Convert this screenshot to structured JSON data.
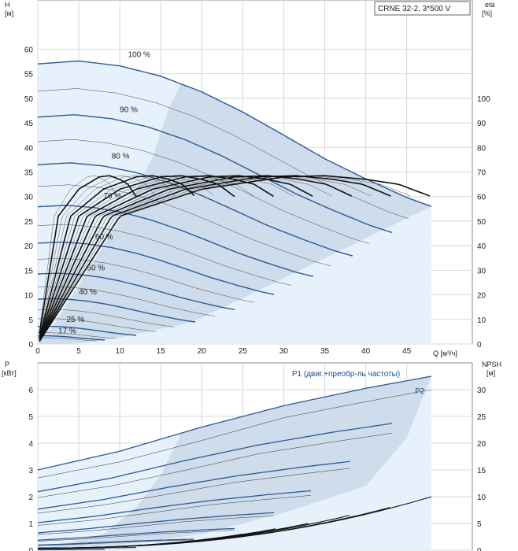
{
  "chart_data": [
    {
      "type": "line",
      "title": "CRNE 32-2, 3*500 V",
      "xlabel": "Q [м³/ч]",
      "ylabel_left": "H",
      "ylabel_left_unit": "[м]",
      "ylabel_right": "eta",
      "ylabel_right_unit": "[%]",
      "xlim": [
        0,
        53
      ],
      "ylim_left": [
        0,
        70
      ],
      "ylim_right": [
        0,
        140
      ],
      "x_ticks": [
        0,
        5,
        10,
        15,
        20,
        25,
        30,
        35,
        40,
        45
      ],
      "y_ticks_left": [
        0,
        5,
        10,
        15,
        20,
        25,
        30,
        35,
        40,
        45,
        50,
        55,
        60
      ],
      "y_ticks_right": [
        0,
        10,
        20,
        30,
        40,
        50,
        60,
        70,
        80,
        90,
        100
      ],
      "speed_labels": [
        "100 %",
        "90 %",
        "80 %",
        "70 %",
        "60 %",
        "50 %",
        "40 %",
        "25 %",
        "17 %"
      ],
      "speed_label_positions": [
        [
          11,
          58.4
        ],
        [
          10,
          47.2
        ],
        [
          9,
          37.7
        ],
        [
          8,
          29.6
        ],
        [
          7,
          21.3
        ],
        [
          6,
          15.0
        ],
        [
          5,
          10.1
        ],
        [
          3.5,
          4.5
        ],
        [
          2.5,
          2.2
        ]
      ],
      "speed_fraction": [
        1.0,
        0.9,
        0.8,
        0.7,
        0.6,
        0.5,
        0.4,
        0.25,
        0.17
      ],
      "head_curve_100": {
        "x": [
          0,
          5,
          10,
          15,
          20,
          25,
          30,
          35,
          40,
          45,
          48
        ],
        "y": [
          57,
          57.6,
          56.6,
          54.5,
          51.3,
          47.2,
          42.5,
          37.7,
          33.6,
          29.8,
          28
        ]
      },
      "efficiency_curve_100": {
        "x": [
          0,
          10,
          20,
          30,
          35,
          40,
          44,
          48
        ],
        "y": [
          0,
          52,
          63,
          68,
          68.5,
          67,
          65,
          60
        ]
      },
      "efficiency_curve_reduced_end": [
        22,
        25,
        33,
        38,
        43,
        43
      ]
    },
    {
      "type": "line",
      "xlabel": "",
      "ylabel_left": "P",
      "ylabel_left_unit": "[кВт]",
      "ylabel_right": "NPSH",
      "ylabel_right_unit": "[м]",
      "xlim": [
        0,
        53
      ],
      "ylim_left": [
        0,
        7
      ],
      "ylim_right": [
        0,
        35
      ],
      "y_ticks_left": [
        0,
        1,
        2,
        3,
        4,
        5,
        6
      ],
      "y_ticks_right": [
        0,
        5,
        10,
        15,
        20,
        25,
        30
      ],
      "series_labels": [
        "P1 (двиг.+преобр-ль частоты)",
        "P2"
      ],
      "series_label_positions": [
        [
          31,
          6.5
        ],
        [
          46,
          5.85
        ]
      ],
      "power_p1_100": {
        "x": [
          0,
          10,
          20,
          30,
          40,
          48
        ],
        "y": [
          3.0,
          3.7,
          4.6,
          5.4,
          6.05,
          6.5
        ]
      },
      "power_p2_100": {
        "x": [
          0,
          10,
          20,
          30,
          40,
          48
        ],
        "y": [
          2.7,
          3.3,
          4.1,
          4.95,
          5.55,
          6.0
        ]
      },
      "npsh_end": [
        {
          "q": 48,
          "npsh": 10.0
        },
        {
          "q": 43,
          "npsh": 8.0
        },
        {
          "q": 38,
          "npsh": 6.5
        },
        {
          "q": 33,
          "npsh": 5.0
        },
        {
          "q": 29,
          "npsh": 4.0
        },
        {
          "q": 25,
          "npsh": 3.0
        }
      ]
    }
  ]
}
